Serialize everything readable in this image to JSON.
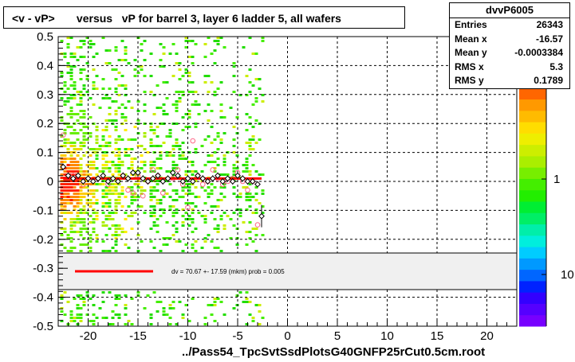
{
  "chart_data": {
    "type": "scatter",
    "title": "<v - vP>       versus   vP for barrel 3, layer 6 ladder 5, all wafers",
    "xlabel": "../Pass54_TpcSvtSsdPlotsG40GNFP25rCut0.5cm.root",
    "ylabel": "",
    "xlim": [
      -23,
      23
    ],
    "ylim": [
      -0.5,
      0.5
    ],
    "x_ticks": [
      -20,
      -15,
      -10,
      -5,
      0,
      5,
      10,
      15,
      20
    ],
    "y_ticks": [
      -0.5,
      -0.4,
      -0.3,
      -0.2,
      -0.1,
      0,
      0.1,
      0.2,
      0.3,
      0.4,
      0.5
    ],
    "x_tick_labels": [
      "-20",
      "-15",
      "-10",
      "-5",
      "0",
      "5",
      "10",
      "15",
      "20"
    ],
    "y_tick_labels": [
      "-0.5",
      "-0.4",
      "-0.3",
      "-0.2",
      "-0.1",
      "0",
      "0.1",
      "0.2",
      "0.3",
      "0.4",
      "0.5"
    ],
    "grid": true,
    "colorbar": {
      "labels": [
        "1",
        "10"
      ],
      "log_scale": true
    },
    "profile_points": [
      {
        "x": -22.5,
        "y": 0.05
      },
      {
        "x": -22.0,
        "y": 0.02
      },
      {
        "x": -21.5,
        "y": 0.01
      },
      {
        "x": -21.0,
        "y": 0.02
      },
      {
        "x": -20.5,
        "y": 0.0
      },
      {
        "x": -20.0,
        "y": 0.01
      },
      {
        "x": -19.5,
        "y": 0.0
      },
      {
        "x": -19.0,
        "y": 0.01
      },
      {
        "x": -18.5,
        "y": 0.02
      },
      {
        "x": -18.0,
        "y": 0.0
      },
      {
        "x": -17.5,
        "y": 0.01
      },
      {
        "x": -17.0,
        "y": 0.0
      },
      {
        "x": -16.5,
        "y": 0.02
      },
      {
        "x": -16.0,
        "y": 0.01
      },
      {
        "x": -15.5,
        "y": 0.03
      },
      {
        "x": -15.0,
        "y": 0.03
      },
      {
        "x": -14.5,
        "y": 0.01
      },
      {
        "x": -14.0,
        "y": 0.0
      },
      {
        "x": -13.5,
        "y": 0.01
      },
      {
        "x": -13.0,
        "y": 0.02
      },
      {
        "x": -12.5,
        "y": 0.0
      },
      {
        "x": -12.0,
        "y": 0.01
      },
      {
        "x": -11.5,
        "y": 0.03
      },
      {
        "x": -11.0,
        "y": 0.02
      },
      {
        "x": -10.5,
        "y": 0.0
      },
      {
        "x": -10.0,
        "y": 0.01
      },
      {
        "x": -9.5,
        "y": 0.0
      },
      {
        "x": -9.0,
        "y": 0.02
      },
      {
        "x": -8.5,
        "y": 0.01
      },
      {
        "x": -8.0,
        "y": 0.0
      },
      {
        "x": -7.5,
        "y": 0.01
      },
      {
        "x": -7.0,
        "y": 0.02
      },
      {
        "x": -6.5,
        "y": 0.0
      },
      {
        "x": -6.0,
        "y": 0.01
      },
      {
        "x": -5.5,
        "y": 0.0
      },
      {
        "x": -5.0,
        "y": 0.02
      },
      {
        "x": -4.5,
        "y": 0.01
      },
      {
        "x": -4.0,
        "y": 0.0
      },
      {
        "x": -3.5,
        "y": 0.0
      },
      {
        "x": -3.0,
        "y": -0.01
      },
      {
        "x": -2.6,
        "y": -0.12
      }
    ],
    "secondary_points": [
      {
        "x": -22.5,
        "y": 0.16
      },
      {
        "x": -21.5,
        "y": 0.02
      },
      {
        "x": -20.5,
        "y": -0.01
      },
      {
        "x": -19.0,
        "y": 0.01
      },
      {
        "x": -18.0,
        "y": -0.01
      },
      {
        "x": -16.5,
        "y": 0.02
      },
      {
        "x": -16.0,
        "y": -0.03
      },
      {
        "x": -15.5,
        "y": -0.04
      },
      {
        "x": -15.0,
        "y": 0.02
      },
      {
        "x": -14.5,
        "y": -0.05
      },
      {
        "x": -14.0,
        "y": 0.0
      },
      {
        "x": -13.5,
        "y": 0.04
      },
      {
        "x": -13.0,
        "y": 0.02
      },
      {
        "x": -12.5,
        "y": -0.04
      },
      {
        "x": -11.5,
        "y": 0.01
      },
      {
        "x": -11.0,
        "y": 0.04
      },
      {
        "x": -10.5,
        "y": -0.01
      },
      {
        "x": -10.0,
        "y": -0.09
      },
      {
        "x": -9.5,
        "y": 0.14
      },
      {
        "x": -9.0,
        "y": 0.02
      },
      {
        "x": -8.5,
        "y": -0.01
      },
      {
        "x": -8.0,
        "y": 0.0
      },
      {
        "x": -7.5,
        "y": 0.04
      },
      {
        "x": -7.0,
        "y": 0.01
      },
      {
        "x": -6.5,
        "y": -0.01
      },
      {
        "x": -6.0,
        "y": 0.0
      },
      {
        "x": -5.5,
        "y": 0.01
      },
      {
        "x": -5.0,
        "y": 0.03
      },
      {
        "x": -4.5,
        "y": 0.0
      },
      {
        "x": -4.0,
        "y": -0.03
      },
      {
        "x": -3.5,
        "y": 0.0
      },
      {
        "x": -3.0,
        "y": -0.15
      }
    ],
    "fit_line": {
      "x_range": [
        -22.5,
        -2.6
      ],
      "y": 0.01,
      "color": "#ff0000"
    },
    "fit_legend_text": "dv =    70.67 +- 17.59 (mkm) prob = 0.005",
    "stats": {
      "name": "dvvP6005",
      "rows": [
        {
          "label": "Entries",
          "value": "26343"
        },
        {
          "label": "Mean x",
          "value": "-16.57"
        },
        {
          "label": "Mean y",
          "value": "-0.0003384"
        },
        {
          "label": "RMS x",
          "value": "5.3"
        },
        {
          "label": "RMS y",
          "value": "0.1789"
        }
      ]
    }
  }
}
